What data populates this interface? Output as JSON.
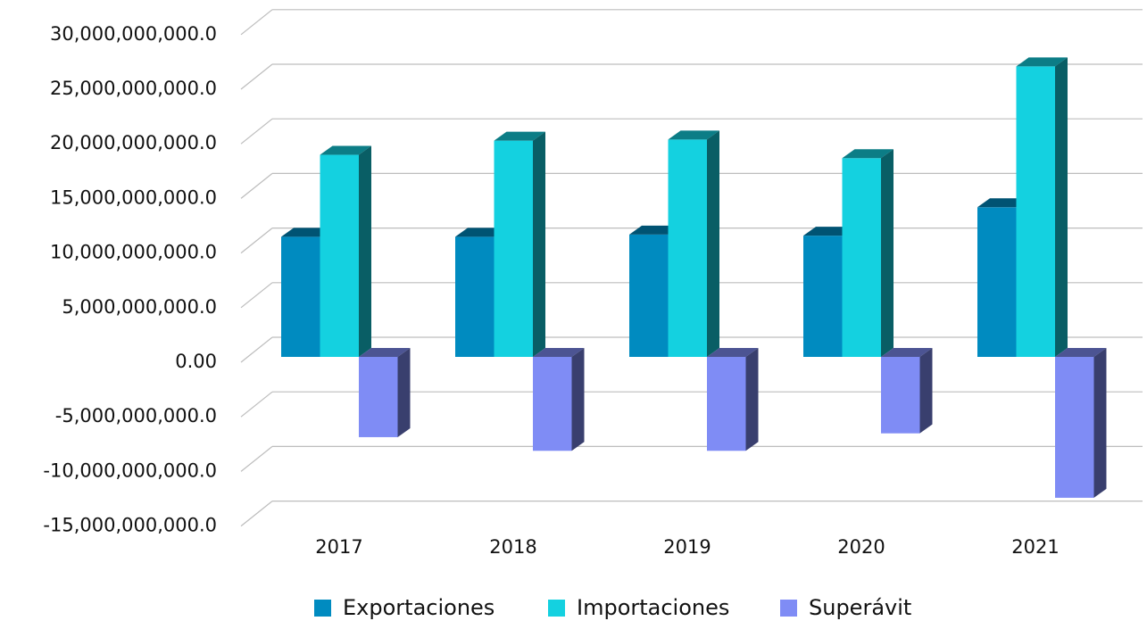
{
  "chart_data": {
    "type": "bar3d",
    "categories": [
      "2017",
      "2018",
      "2019",
      "2020",
      "2021"
    ],
    "series": [
      {
        "name": "Exportaciones",
        "color": "#008bc0",
        "values": [
          11000000000,
          11000000000,
          11200000000,
          11100000000,
          13700000000
        ]
      },
      {
        "name": "Importaciones",
        "color": "#14d1e0",
        "values": [
          18500000000,
          19800000000,
          19900000000,
          18200000000,
          26600000000
        ]
      },
      {
        "name": "Superávit",
        "color": "#7f8cf5",
        "values": [
          -7350000000,
          -8600000000,
          -8600000000,
          -7000000000,
          -12900000000
        ]
      }
    ],
    "ylim": [
      -15000000000,
      30000000000
    ],
    "yticks": [
      {
        "value": -15000000000,
        "label": "-15,000,000,000.0"
      },
      {
        "value": -10000000000,
        "label": "-10,000,000,000.0"
      },
      {
        "value": -5000000000,
        "label": "-5,000,000,000.0"
      },
      {
        "value": 0,
        "label": "0.00"
      },
      {
        "value": 5000000000,
        "label": "5,000,000,000.0"
      },
      {
        "value": 10000000000,
        "label": "10,000,000,000.0"
      },
      {
        "value": 15000000000,
        "label": "15,000,000,000.0"
      },
      {
        "value": 20000000000,
        "label": "20,000,000,000.0"
      },
      {
        "value": 25000000000,
        "label": "25,000,000,000.0"
      },
      {
        "value": 30000000000,
        "label": "30,000,000,000.0"
      }
    ],
    "grid": true,
    "legend": "bottom"
  }
}
